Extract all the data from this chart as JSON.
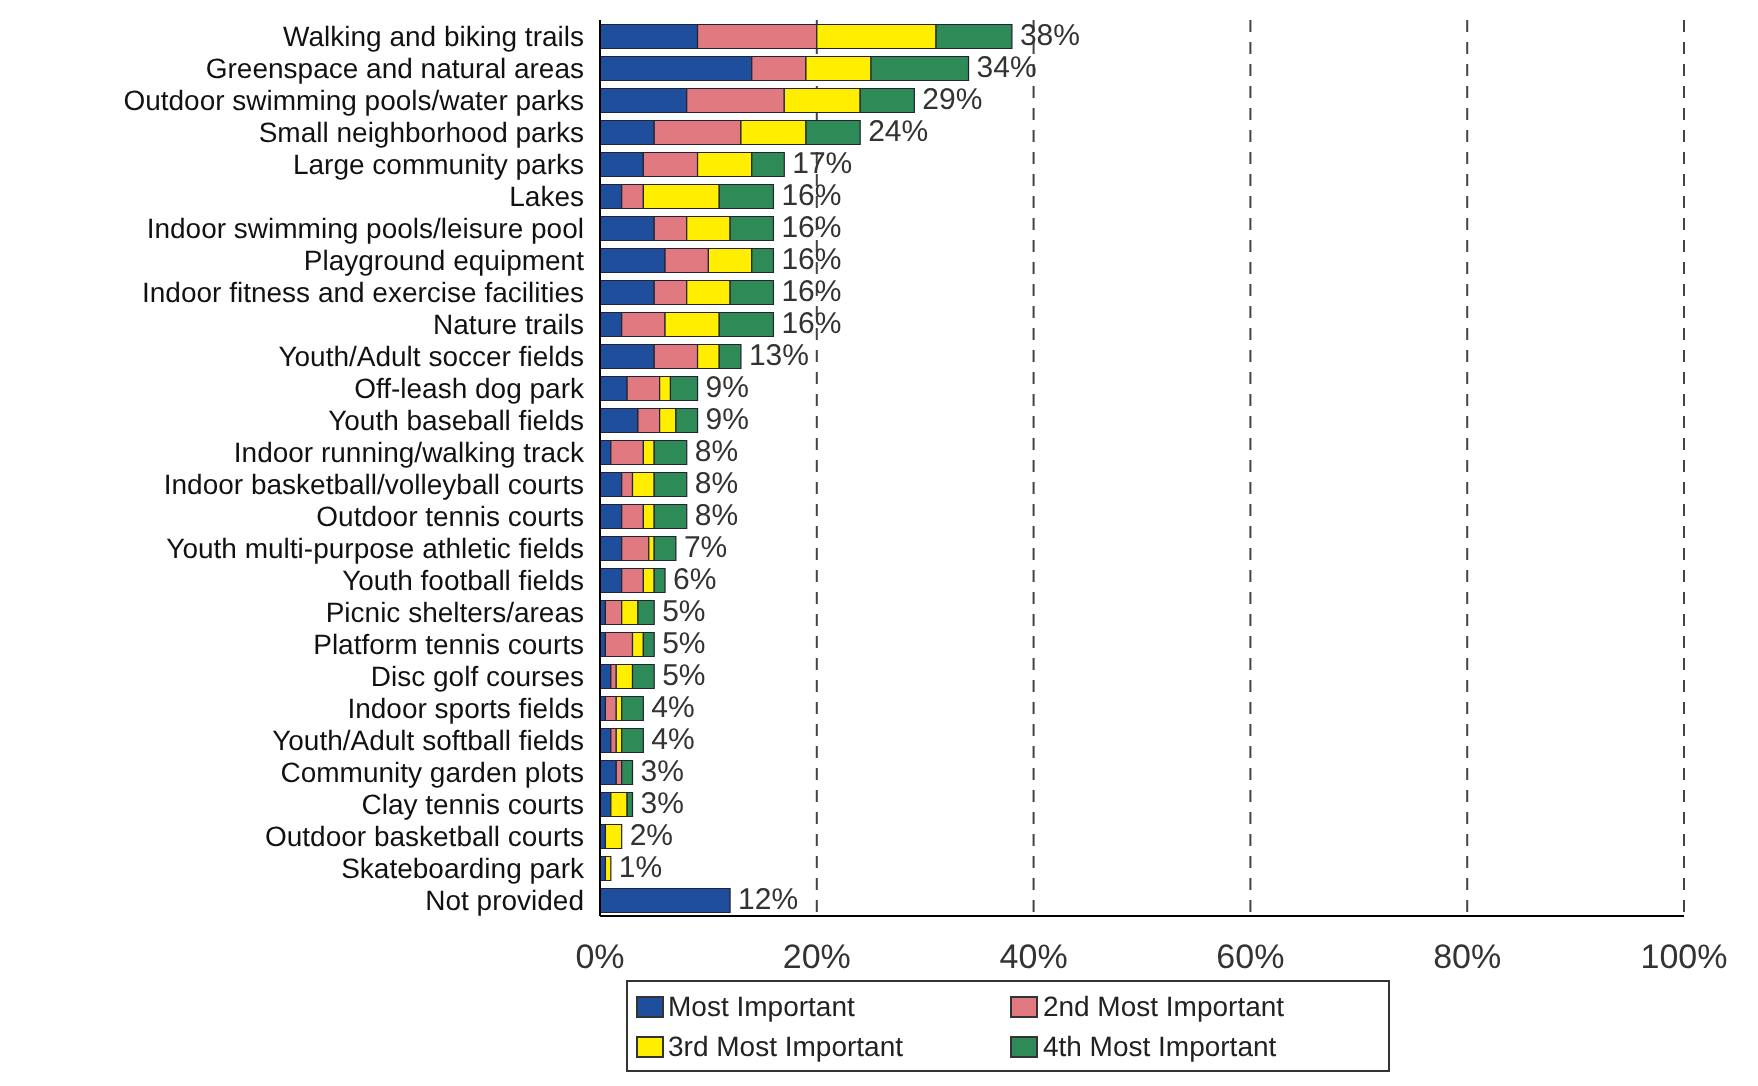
{
  "chart_data": {
    "type": "bar",
    "orientation": "horizontal",
    "stacked": true,
    "categories": [
      "Walking and biking trails",
      "Greenspace and natural areas",
      "Outdoor swimming pools/water parks",
      "Small neighborhood parks",
      "Large community parks",
      "Lakes",
      "Indoor swimming pools/leisure pool",
      "Playground equipment",
      "Indoor fitness and exercise facilities",
      "Nature trails",
      "Youth/Adult soccer fields",
      "Off-leash dog park",
      "Youth baseball fields",
      "Indoor running/walking track",
      "Indoor basketball/volleyball courts",
      "Outdoor tennis courts",
      "Youth multi-purpose athletic fields",
      "Youth football fields",
      "Picnic shelters/areas",
      "Platform tennis courts",
      "Disc golf courses",
      "Indoor sports fields",
      "Youth/Adult softball fields",
      "Community garden plots",
      "Clay tennis courts",
      "Outdoor basketball courts",
      "Skateboarding park",
      "Not provided"
    ],
    "series": [
      {
        "name": "Most Important",
        "color": "#1f4e9c",
        "values": [
          9,
          14,
          8,
          5,
          4,
          2,
          5,
          6,
          5,
          2,
          5,
          2.5,
          3.5,
          1,
          2,
          2,
          2,
          2,
          0.5,
          0.5,
          1,
          0.5,
          1,
          1.5,
          1,
          0.5,
          0.5,
          12
        ]
      },
      {
        "name": "2nd Most Important",
        "color": "#e07a80",
        "values": [
          11,
          5,
          9,
          8,
          5,
          2,
          3,
          4,
          3,
          4,
          4,
          3,
          2,
          3,
          1,
          2,
          2.5,
          2,
          1.5,
          2.5,
          0.5,
          1,
          0.5,
          0.5,
          0,
          0,
          0,
          0
        ]
      },
      {
        "name": "3rd Most Important",
        "color": "#ffee00",
        "values": [
          11,
          6,
          7,
          6,
          5,
          7,
          4,
          4,
          4,
          5,
          2,
          1,
          1.5,
          1,
          2,
          1,
          0.5,
          1,
          1.5,
          1,
          1.5,
          0.5,
          0.5,
          0,
          1.5,
          1.5,
          0.5,
          0
        ]
      },
      {
        "name": "4th Most Important",
        "color": "#2e8b57",
        "values": [
          7,
          9,
          5,
          5,
          3,
          5,
          4,
          2,
          4,
          5,
          2,
          2.5,
          2,
          3,
          3,
          3,
          2,
          1,
          1.5,
          1,
          2,
          2,
          2,
          1,
          0.5,
          0,
          0,
          0
        ]
      }
    ],
    "totals": [
      "38%",
      "34%",
      "29%",
      "24%",
      "17%",
      "16%",
      "16%",
      "16%",
      "16%",
      "16%",
      "13%",
      "9%",
      "9%",
      "8%",
      "8%",
      "8%",
      "7%",
      "6%",
      "5%",
      "5%",
      "5%",
      "4%",
      "4%",
      "3%",
      "3%",
      "2%",
      "1%",
      "12%"
    ],
    "xlim": [
      0,
      100
    ],
    "xticks": [
      {
        "value": 0,
        "label": "0%"
      },
      {
        "value": 20,
        "label": "20%"
      },
      {
        "value": 40,
        "label": "40%"
      },
      {
        "value": 60,
        "label": "60%"
      },
      {
        "value": 80,
        "label": "80%"
      },
      {
        "value": 100,
        "label": "100%"
      }
    ],
    "grid": "x",
    "legend": "bottom"
  }
}
